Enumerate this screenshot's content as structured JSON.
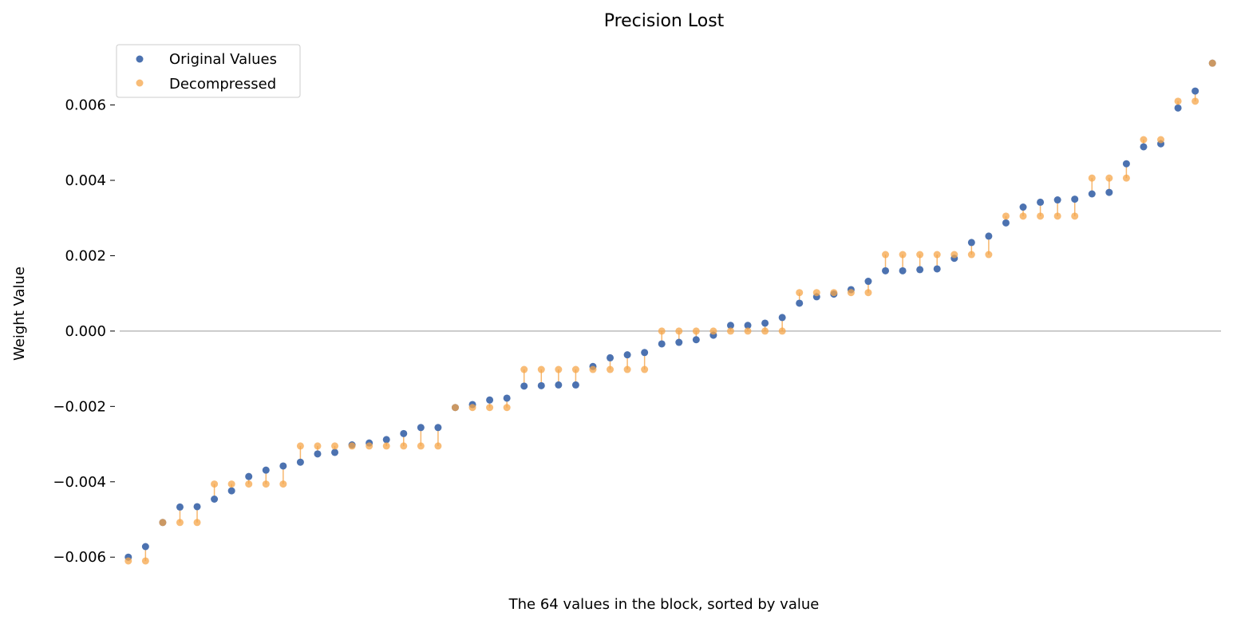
{
  "chart_data": {
    "type": "scatter",
    "title": "Precision Lost",
    "xlabel": "The 64 values in the block, sorted by value",
    "ylabel": "Weight Value",
    "xlim": [
      -0.5,
      63.5
    ],
    "ylim": [
      -0.0068,
      0.0076
    ],
    "yticks": [
      -0.006,
      -0.004,
      -0.002,
      0.0,
      0.002,
      0.004,
      0.006
    ],
    "ytick_labels": [
      "−0.006",
      "−0.004",
      "−0.002",
      "0.000",
      "0.002",
      "0.004",
      "0.006"
    ],
    "grid": false,
    "legend_position": "top-left",
    "zero_line": true,
    "colors": {
      "original": "#4c72b0",
      "decompressed": "#f5a54a",
      "connector": "#f5a54a",
      "zero_line": "#bbbbbb"
    },
    "series": [
      {
        "name": "Original Values",
        "values": [
          -0.006,
          -0.00572,
          -0.00508,
          -0.00467,
          -0.00466,
          -0.00446,
          -0.00424,
          -0.00386,
          -0.00369,
          -0.00358,
          -0.00348,
          -0.00326,
          -0.00322,
          -0.00302,
          -0.00297,
          -0.00288,
          -0.00272,
          -0.00256,
          -0.00256,
          -0.00203,
          -0.00195,
          -0.00183,
          -0.00178,
          -0.00146,
          -0.00145,
          -0.00143,
          -0.00143,
          -0.00094,
          -0.00071,
          -0.00063,
          -0.00057,
          -0.00034,
          -0.0003,
          -0.00023,
          -0.00011,
          0.00015,
          0.00015,
          0.00021,
          0.00036,
          0.00074,
          0.00091,
          0.00098,
          0.0011,
          0.00132,
          0.0016,
          0.0016,
          0.00163,
          0.00165,
          0.00193,
          0.00235,
          0.00252,
          0.00287,
          0.00329,
          0.00342,
          0.00348,
          0.0035,
          0.00364,
          0.00368,
          0.00444,
          0.00489,
          0.00497,
          0.00592,
          0.00637,
          0.00711
        ]
      },
      {
        "name": "Decompressed",
        "values": [
          -0.0061,
          -0.0061,
          -0.00508,
          -0.00508,
          -0.00508,
          -0.00406,
          -0.00406,
          -0.00406,
          -0.00406,
          -0.00406,
          -0.00305,
          -0.00305,
          -0.00305,
          -0.00305,
          -0.00305,
          -0.00305,
          -0.00305,
          -0.00305,
          -0.00305,
          -0.00203,
          -0.00203,
          -0.00203,
          -0.00203,
          -0.00102,
          -0.00102,
          -0.00102,
          -0.00102,
          -0.00102,
          -0.00102,
          -0.00102,
          -0.00102,
          0.0,
          0.0,
          0.0,
          0.0,
          0.0,
          0.0,
          0.0,
          0.0,
          0.00102,
          0.00102,
          0.00102,
          0.00102,
          0.00102,
          0.00203,
          0.00203,
          0.00203,
          0.00203,
          0.00203,
          0.00203,
          0.00203,
          0.00305,
          0.00305,
          0.00305,
          0.00305,
          0.00305,
          0.00406,
          0.00406,
          0.00406,
          0.00508,
          0.00508,
          0.0061,
          0.0061,
          0.00711
        ]
      }
    ]
  }
}
